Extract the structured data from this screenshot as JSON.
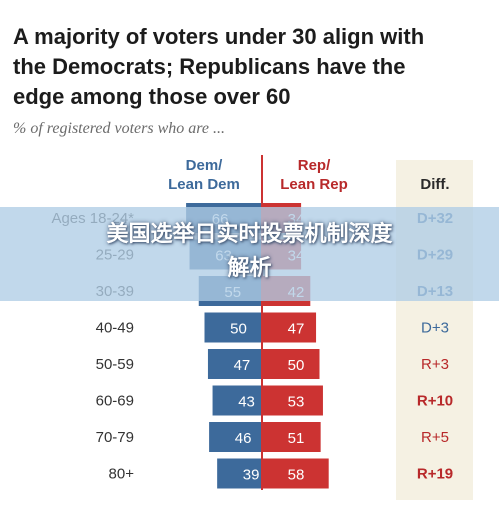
{
  "chart_data": {
    "type": "bar",
    "title": "A majority of voters under 30 align with\nthe Democrats; Republicans have the\nedge among those over 60",
    "subtitle": "% of registered voters who are ...",
    "column_headers": {
      "dem": "Dem/\nLean Dem",
      "rep": "Rep/\nLean Rep",
      "diff": "Diff."
    },
    "categories": [
      "Ages 18-24*",
      "25-29",
      "30-39",
      "40-49",
      "50-59",
      "60-69",
      "70-79",
      "80+"
    ],
    "series": [
      {
        "name": "Dem/Lean Dem",
        "values": [
          66,
          63,
          55,
          50,
          47,
          43,
          46,
          39
        ]
      },
      {
        "name": "Rep/Lean Rep",
        "values": [
          34,
          34,
          42,
          47,
          50,
          53,
          51,
          58
        ]
      }
    ],
    "diff": [
      "D+32",
      "D+29",
      "D+13",
      "D+3",
      "R+3",
      "R+10",
      "R+5",
      "R+19"
    ],
    "diff_bold": [
      true,
      true,
      true,
      false,
      false,
      true,
      false,
      true
    ],
    "colors": {
      "dem": "#3d6a9b",
      "rep": "#cc3332",
      "dem_text": "#3d6a9b",
      "rep_text": "#b8292a",
      "diff_panel": "#f5f1e3",
      "divider": "#cc3332"
    }
  },
  "overlay": {
    "line1": "美国选举日实时投票机制深度",
    "line2": "解析"
  }
}
